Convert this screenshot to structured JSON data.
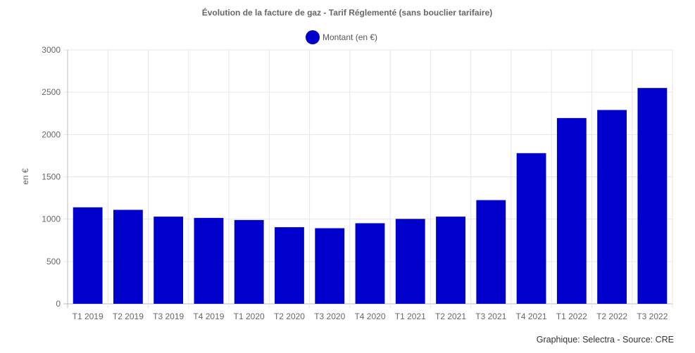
{
  "chart_data": {
    "type": "bar",
    "title": "Évolution de la facture de gaz - Tarif Réglementé (sans bouclier tarifaire)",
    "ylabel": "en €",
    "xlabel": "",
    "ylim": [
      0,
      3000
    ],
    "yticks": [
      0,
      500,
      1000,
      1500,
      2000,
      2500,
      3000
    ],
    "grid": true,
    "legend_position": "top-center",
    "categories": [
      "T1 2019",
      "T2 2019",
      "T3 2019",
      "T4 2019",
      "T1 2020",
      "T2 2020",
      "T3 2020",
      "T4 2020",
      "T1 2021",
      "T2 2021",
      "T3 2021",
      "T4 2021",
      "T1 2022",
      "T2 2022",
      "T3 2022"
    ],
    "series": [
      {
        "name": "Montant (en €)",
        "color": "#0000CC",
        "values": [
          1140,
          1110,
          1030,
          1015,
          990,
          905,
          893,
          952,
          1003,
          1030,
          1225,
          1780,
          2195,
          2290,
          2550
        ]
      }
    ]
  },
  "footer": {
    "source": "Graphique: Selectra - Source: CRE"
  }
}
